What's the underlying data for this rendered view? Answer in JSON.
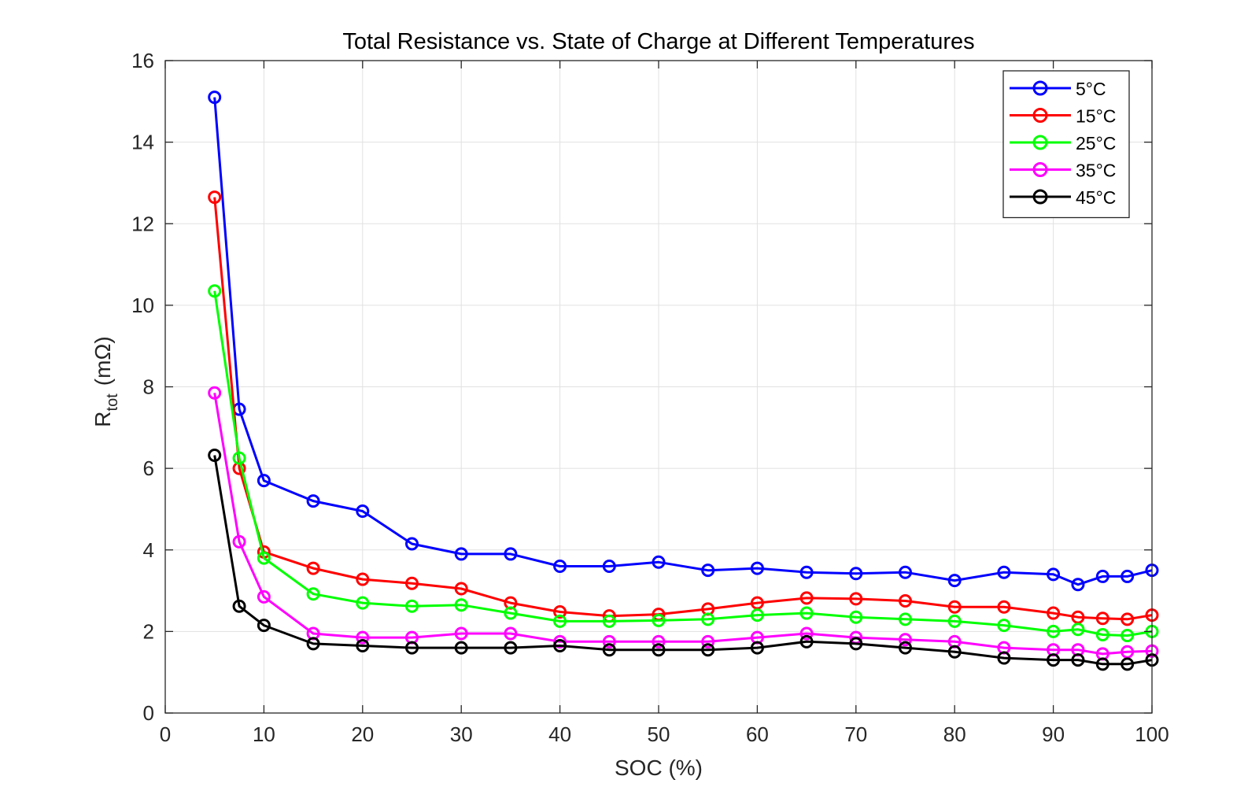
{
  "chart_data": {
    "type": "line",
    "title": "Total Resistance vs. State of Charge at Different Temperatures",
    "xlabel": "SOC (%)",
    "ylabel_main": "R",
    "ylabel_sub": "tot",
    "ylabel_unit": "(mΩ)",
    "xlim": [
      0,
      100
    ],
    "ylim": [
      0,
      16
    ],
    "xticks": [
      0,
      10,
      20,
      30,
      40,
      50,
      60,
      70,
      80,
      90,
      100
    ],
    "yticks": [
      0,
      2,
      4,
      6,
      8,
      10,
      12,
      14,
      16
    ],
    "grid": true,
    "legend_position": "top-right",
    "marker": "circle-open",
    "x": [
      5,
      7.5,
      10,
      15,
      20,
      25,
      30,
      35,
      40,
      45,
      50,
      55,
      60,
      65,
      70,
      75,
      80,
      85,
      90,
      92.5,
      95,
      97.5,
      100
    ],
    "series": [
      {
        "name": "5°C",
        "color": "#0000ff",
        "values": [
          15.1,
          7.45,
          5.7,
          5.2,
          4.95,
          4.15,
          3.9,
          3.9,
          3.6,
          3.6,
          3.7,
          3.5,
          3.55,
          3.45,
          3.42,
          3.45,
          3.25,
          3.45,
          3.4,
          3.15,
          3.35,
          3.35,
          3.5
        ]
      },
      {
        "name": "15°C",
        "color": "#ff0000",
        "values": [
          12.65,
          6.0,
          3.95,
          3.55,
          3.28,
          3.18,
          3.05,
          2.7,
          2.48,
          2.38,
          2.42,
          2.55,
          2.7,
          2.82,
          2.8,
          2.75,
          2.6,
          2.6,
          2.45,
          2.35,
          2.32,
          2.3,
          2.4
        ]
      },
      {
        "name": "25°C",
        "color": "#00ff00",
        "values": [
          10.35,
          6.25,
          3.8,
          2.92,
          2.7,
          2.62,
          2.65,
          2.45,
          2.25,
          2.25,
          2.27,
          2.3,
          2.4,
          2.45,
          2.35,
          2.3,
          2.25,
          2.15,
          2.0,
          2.05,
          1.92,
          1.9,
          2.0
        ]
      },
      {
        "name": "35°C",
        "color": "#ff00ff",
        "values": [
          7.85,
          4.2,
          2.85,
          1.95,
          1.85,
          1.85,
          1.95,
          1.95,
          1.75,
          1.75,
          1.75,
          1.75,
          1.85,
          1.95,
          1.85,
          1.8,
          1.75,
          1.6,
          1.55,
          1.55,
          1.45,
          1.5,
          1.52
        ]
      },
      {
        "name": "45°C",
        "color": "#000000",
        "values": [
          6.32,
          2.62,
          2.15,
          1.7,
          1.65,
          1.6,
          1.6,
          1.6,
          1.65,
          1.55,
          1.55,
          1.55,
          1.6,
          1.75,
          1.7,
          1.6,
          1.5,
          1.35,
          1.3,
          1.3,
          1.2,
          1.2,
          1.3
        ]
      }
    ]
  }
}
